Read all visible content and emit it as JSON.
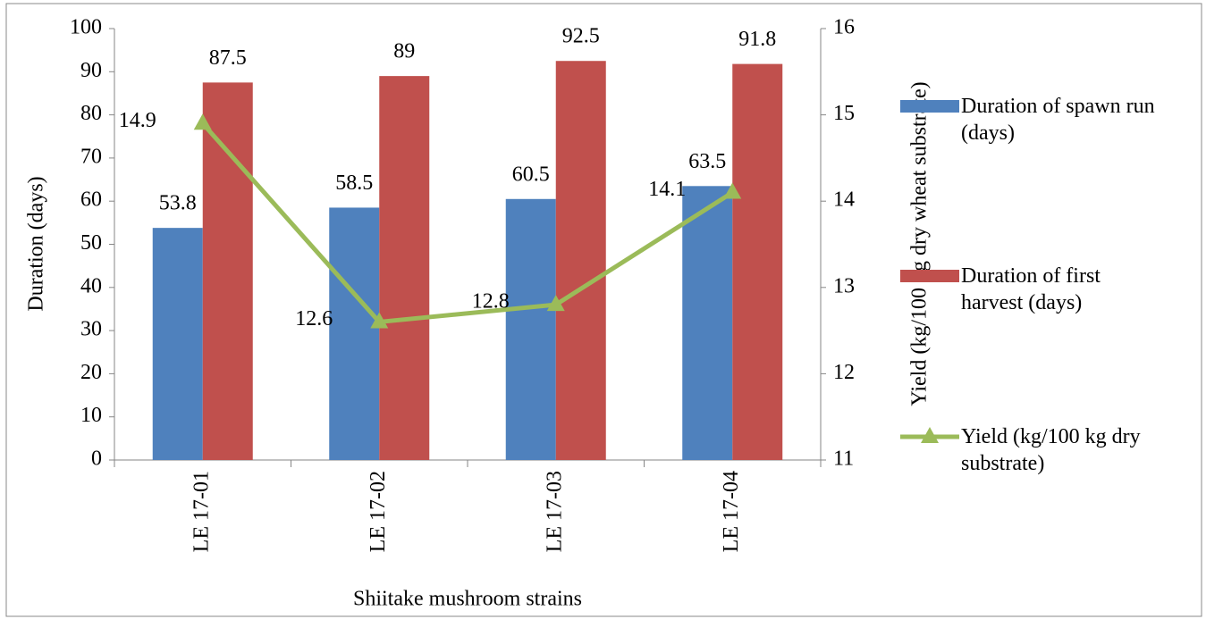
{
  "chart_data": {
    "type": "bar",
    "x_label": "Shiitake mushroom strains",
    "y_label": "Duration (days)",
    "y2_label": "Yield (kg/100 kg dry wheat substrate)",
    "categories": [
      "LE 17-01",
      "LE 17-02",
      "LE 17-03",
      "LE 17-04"
    ],
    "series": [
      {
        "name": "Duration of spawn run (days)",
        "type": "bar",
        "color": "#4f81bd",
        "label_color": "#2e75b6",
        "values": [
          53.8,
          58.5,
          60.5,
          63.5
        ]
      },
      {
        "name": "Duration of first harvest (days)",
        "type": "bar",
        "color": "#c0504d",
        "label_color": "#c00000",
        "values": [
          87.5,
          89,
          92.5,
          91.8
        ]
      },
      {
        "name": "Yield (kg/100 kg dry substrate)",
        "type": "line",
        "axis": "y2",
        "color": "#9bbb59",
        "label_color": "#00b050",
        "values": [
          14.9,
          12.6,
          12.8,
          14.1
        ]
      }
    ],
    "ylim": [
      0,
      100
    ],
    "yticks": [
      0,
      10,
      20,
      30,
      40,
      50,
      60,
      70,
      80,
      90,
      100
    ],
    "y2lim": [
      11,
      16
    ],
    "y2ticks": [
      11,
      12,
      13,
      14,
      15,
      16
    ],
    "grid": false,
    "legend": "right"
  }
}
